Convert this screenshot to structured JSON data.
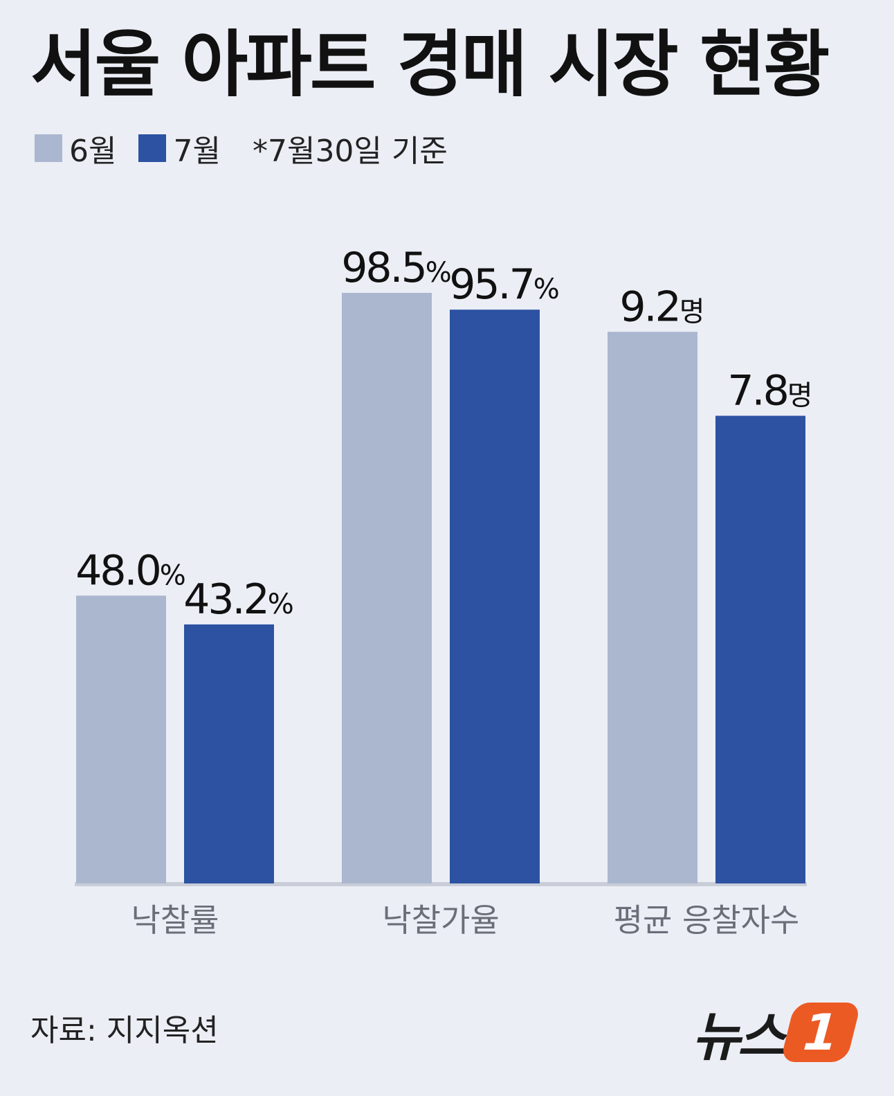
{
  "title": "서울 아파트 경매 시장 현황",
  "legend": {
    "items": [
      {
        "label": "6월",
        "color": "#aab7cf"
      },
      {
        "label": "7월",
        "color": "#2c52a1"
      }
    ],
    "note": "*7월30일 기준"
  },
  "chart_data": {
    "type": "bar",
    "categories": [
      "낙찰률",
      "낙찰가율",
      "평균 응찰자수"
    ],
    "series": [
      {
        "name": "6월",
        "color": "#aab7cf",
        "values": [
          48.0,
          98.5,
          9.2
        ],
        "labels": [
          "48.0",
          "98.5",
          "9.2"
        ],
        "units": [
          "%",
          "%",
          "명"
        ]
      },
      {
        "name": "7월",
        "color": "#2c52a1",
        "values": [
          43.2,
          95.7,
          7.8
        ],
        "labels": [
          "43.2",
          "95.7",
          "7.8"
        ],
        "units": [
          "%",
          "%",
          "명"
        ]
      }
    ],
    "scale_max": [
      100,
      100,
      10
    ],
    "grid": false,
    "legend_position": "top-left"
  },
  "source": "자료: 지지옥션",
  "logo": {
    "word": "뉴스",
    "mark": "1"
  }
}
